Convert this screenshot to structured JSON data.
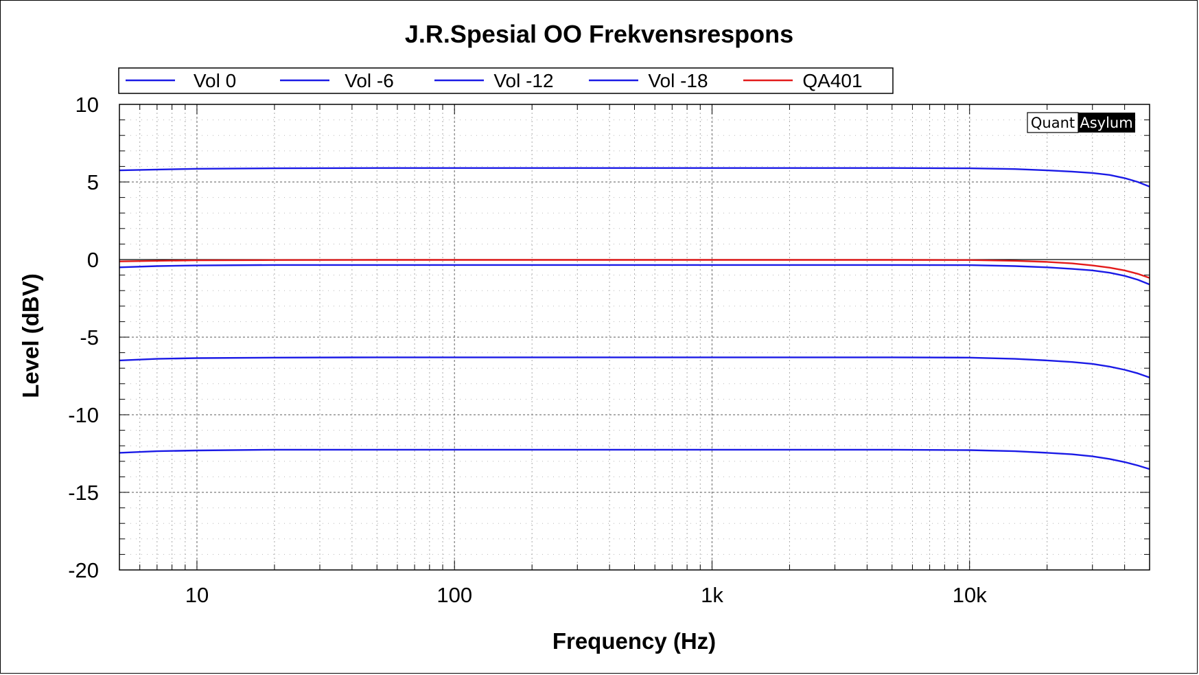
{
  "chart_data": {
    "type": "line",
    "title": "J.R.Spesial OO Frekvensrespons",
    "xlabel": "Frequency (Hz)",
    "ylabel": "Level (dBV)",
    "x_scale": "log",
    "xlim": [
      5,
      50000
    ],
    "ylim": [
      -20,
      10
    ],
    "x_ticks": [
      {
        "value": 10,
        "label": "10"
      },
      {
        "value": 100,
        "label": "100"
      },
      {
        "value": 1000,
        "label": "1k"
      },
      {
        "value": 10000,
        "label": "10k"
      }
    ],
    "y_ticks": [
      {
        "value": 10,
        "label": "10"
      },
      {
        "value": 5,
        "label": "5"
      },
      {
        "value": 0,
        "label": "0"
      },
      {
        "value": -5,
        "label": "-5"
      },
      {
        "value": -10,
        "label": "-10"
      },
      {
        "value": -15,
        "label": "-15"
      },
      {
        "value": -20,
        "label": "-20"
      }
    ],
    "grid": true,
    "legend_position": "top",
    "watermark": {
      "part1": "Quant",
      "part2": "Asylum"
    },
    "series": [
      {
        "name": "Vol 0",
        "color": "#1a1ae6",
        "x": [
          5,
          7,
          10,
          20,
          50,
          100,
          1000,
          5000,
          10000,
          15000,
          20000,
          25000,
          30000,
          35000,
          40000,
          45000,
          50000
        ],
        "y": [
          5.75,
          5.8,
          5.85,
          5.88,
          5.9,
          5.9,
          5.9,
          5.9,
          5.88,
          5.83,
          5.75,
          5.67,
          5.58,
          5.45,
          5.25,
          5.0,
          4.7
        ]
      },
      {
        "name": "Vol -6",
        "color": "#1a1ae6",
        "x": [
          5,
          7,
          10,
          20,
          50,
          100,
          1000,
          5000,
          10000,
          15000,
          20000,
          25000,
          30000,
          35000,
          40000,
          45000,
          50000
        ],
        "y": [
          -0.5,
          -0.42,
          -0.38,
          -0.35,
          -0.35,
          -0.35,
          -0.35,
          -0.35,
          -0.36,
          -0.42,
          -0.5,
          -0.6,
          -0.7,
          -0.85,
          -1.05,
          -1.3,
          -1.6
        ]
      },
      {
        "name": "Vol -12",
        "color": "#1a1ae6",
        "x": [
          5,
          7,
          10,
          20,
          50,
          100,
          1000,
          5000,
          10000,
          15000,
          20000,
          25000,
          30000,
          35000,
          40000,
          45000,
          50000
        ],
        "y": [
          -6.5,
          -6.4,
          -6.35,
          -6.32,
          -6.3,
          -6.3,
          -6.3,
          -6.3,
          -6.32,
          -6.4,
          -6.5,
          -6.6,
          -6.72,
          -6.9,
          -7.1,
          -7.33,
          -7.6
        ]
      },
      {
        "name": "Vol -18",
        "color": "#1a1ae6",
        "x": [
          5,
          7,
          10,
          20,
          50,
          100,
          1000,
          5000,
          10000,
          15000,
          20000,
          25000,
          30000,
          35000,
          40000,
          45000,
          50000
        ],
        "y": [
          -12.45,
          -12.35,
          -12.3,
          -12.25,
          -12.25,
          -12.25,
          -12.25,
          -12.25,
          -12.28,
          -12.35,
          -12.45,
          -12.55,
          -12.68,
          -12.85,
          -13.05,
          -13.27,
          -13.5
        ]
      },
      {
        "name": "QA401",
        "color": "#e31a1a",
        "x": [
          5,
          7,
          10,
          20,
          50,
          100,
          1000,
          5000,
          10000,
          15000,
          20000,
          25000,
          30000,
          35000,
          40000,
          45000,
          50000
        ],
        "y": [
          -0.12,
          -0.08,
          -0.05,
          -0.03,
          -0.02,
          -0.02,
          -0.02,
          -0.02,
          -0.03,
          -0.08,
          -0.15,
          -0.25,
          -0.38,
          -0.52,
          -0.7,
          -0.92,
          -1.18
        ]
      }
    ]
  }
}
